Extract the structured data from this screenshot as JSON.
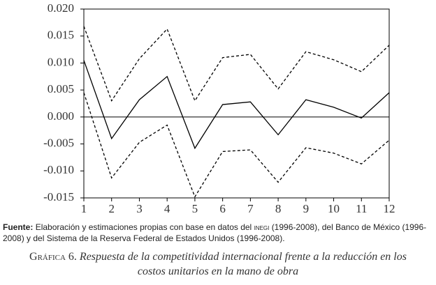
{
  "chart_data": {
    "type": "line",
    "x": [
      1,
      2,
      3,
      4,
      5,
      6,
      7,
      8,
      9,
      10,
      11,
      12
    ],
    "xlim": [
      1,
      12
    ],
    "xticks": [
      1,
      2,
      3,
      4,
      5,
      6,
      7,
      8,
      9,
      10,
      11,
      12
    ],
    "ylim": [
      -0.015,
      0.02
    ],
    "yticks": [
      {
        "value": 0.02,
        "label": "0.020"
      },
      0.015,
      {
        "value": 0.01,
        "label": "0.010"
      },
      0.005,
      {
        "value": 0,
        "label": "0.000"
      },
      -0.005,
      {
        "value": -0.01,
        "label": "-0.010"
      },
      -0.015
    ],
    "hline": 0,
    "series": [
      {
        "color": "#000000",
        "dashed": false,
        "values": [
          0.0105,
          -0.004,
          0.0032,
          0.0075,
          -0.0058,
          0.0023,
          0.0028,
          -0.0033,
          0.0032,
          0.0018,
          -0.0002,
          0.0045
        ]
      },
      {
        "color": "#000000",
        "dashed": true,
        "values": [
          0.0168,
          0.003,
          0.0108,
          0.0163,
          0.003,
          0.011,
          0.0116,
          0.0052,
          0.0121,
          0.0106,
          0.0084,
          0.0133
        ]
      },
      {
        "color": "#000000",
        "dashed": true,
        "values": [
          0.0045,
          -0.0113,
          -0.0047,
          -0.0015,
          -0.0148,
          -0.0064,
          -0.0061,
          -0.0121,
          -0.0057,
          -0.0067,
          -0.0087,
          -0.0043
        ]
      }
    ],
    "source_label": "Fuente:",
    "source_text": "Elaboración y estimaciones propias con base en datos del",
    "source_abbr": "inegi",
    "source_rest": "(1996-2008), del Banco de México (1996-2008) y del Sistema de la Reserva Federal de Estados Unidos (1996-2008).",
    "caption_label": "Gráfica 6.",
    "title": "Respuesta de la competitividad internacional frente a la reducción en los costos unitarios en la mano de obra"
  }
}
